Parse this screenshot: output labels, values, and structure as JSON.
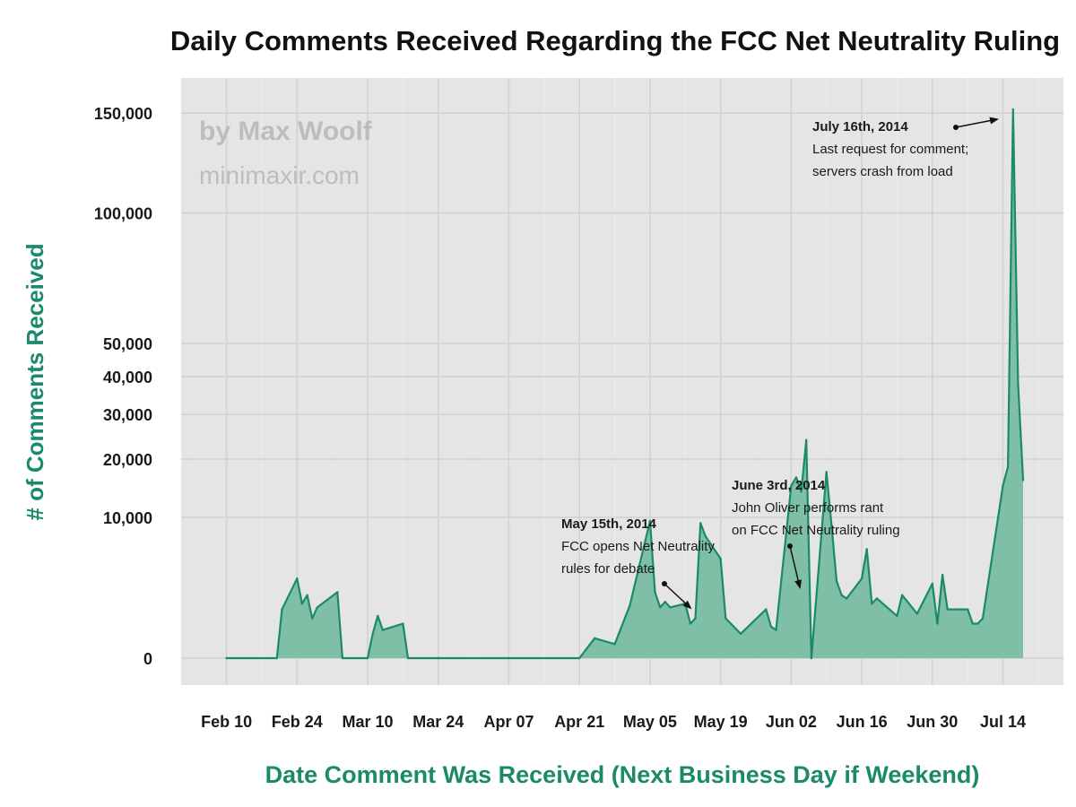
{
  "colors": {
    "accent": "#1b8a6b",
    "area_fill": "#7fbfa6",
    "panel_bg": "#e5e5e5",
    "grid": "#d2d2d2",
    "watermark": "#bdbdbd"
  },
  "watermark": {
    "line1": "by Max Woolf",
    "line2": "minimaxir.com"
  },
  "chart_data": {
    "type": "area",
    "title": "Daily Comments Received Regarding the FCC Net Neutrality Ruling",
    "xlabel": "Date Comment Was Received (Next Business Day if Weekend)",
    "ylabel": "# of Comments Received",
    "y_scale": "sqrt",
    "ylim": [
      0,
      155000
    ],
    "xlim": [
      "2014-02-01",
      "2014-07-26"
    ],
    "grid": true,
    "x_ticks": [
      {
        "date": "2014-02-10",
        "label": "Feb 10"
      },
      {
        "date": "2014-02-24",
        "label": "Feb 24"
      },
      {
        "date": "2014-03-10",
        "label": "Mar 10"
      },
      {
        "date": "2014-03-24",
        "label": "Mar 24"
      },
      {
        "date": "2014-04-07",
        "label": "Apr 07"
      },
      {
        "date": "2014-04-21",
        "label": "Apr 21"
      },
      {
        "date": "2014-05-05",
        "label": "May 05"
      },
      {
        "date": "2014-05-19",
        "label": "May 19"
      },
      {
        "date": "2014-06-02",
        "label": "Jun 02"
      },
      {
        "date": "2014-06-16",
        "label": "Jun 16"
      },
      {
        "date": "2014-06-30",
        "label": "Jun 30"
      },
      {
        "date": "2014-07-14",
        "label": "Jul 14"
      }
    ],
    "y_ticks": [
      {
        "value": 0,
        "label": "0"
      },
      {
        "value": 10000,
        "label": "10,000"
      },
      {
        "value": 20000,
        "label": "20,000"
      },
      {
        "value": 30000,
        "label": "30,000"
      },
      {
        "value": 40000,
        "label": "40,000"
      },
      {
        "value": 50000,
        "label": "50,000"
      },
      {
        "value": 100000,
        "label": "100,000"
      },
      {
        "value": 150000,
        "label": "150,000"
      }
    ],
    "x": [
      "2014-02-10",
      "2014-02-20",
      "2014-02-21",
      "2014-02-24",
      "2014-02-25",
      "2014-02-26",
      "2014-02-27",
      "2014-02-28",
      "2014-03-04",
      "2014-03-05",
      "2014-03-10",
      "2014-03-11",
      "2014-03-12",
      "2014-03-13",
      "2014-03-17",
      "2014-03-18",
      "2014-03-24",
      "2014-04-07",
      "2014-04-21",
      "2014-04-24",
      "2014-04-28",
      "2014-05-01",
      "2014-05-05",
      "2014-05-06",
      "2014-05-07",
      "2014-05-08",
      "2014-05-09",
      "2014-05-12",
      "2014-05-13",
      "2014-05-14",
      "2014-05-15",
      "2014-05-16",
      "2014-05-19",
      "2014-05-20",
      "2014-05-23",
      "2014-05-28",
      "2014-05-29",
      "2014-05-30",
      "2014-06-02",
      "2014-06-03",
      "2014-06-04",
      "2014-06-05",
      "2014-06-06",
      "2014-06-09",
      "2014-06-10",
      "2014-06-11",
      "2014-06-12",
      "2014-06-13",
      "2014-06-16",
      "2014-06-17",
      "2014-06-18",
      "2014-06-19",
      "2014-06-23",
      "2014-06-24",
      "2014-06-27",
      "2014-06-30",
      "2014-07-01",
      "2014-07-02",
      "2014-07-03",
      "2014-07-07",
      "2014-07-08",
      "2014-07-09",
      "2014-07-10",
      "2014-07-14",
      "2014-07-15",
      "2014-07-16",
      "2014-07-17",
      "2014-07-18"
    ],
    "values": [
      0,
      0,
      1200,
      3200,
      1500,
      2000,
      800,
      1300,
      2200,
      0,
      0,
      300,
      900,
      400,
      600,
      0,
      0,
      0,
      0,
      200,
      100,
      1400,
      9500,
      2200,
      1300,
      1600,
      1300,
      1500,
      600,
      800,
      9200,
      7500,
      5000,
      800,
      300,
      1200,
      500,
      400,
      15000,
      16500,
      14000,
      24000,
      0,
      17500,
      9000,
      3000,
      2000,
      1800,
      3200,
      6000,
      1500,
      1800,
      900,
      2000,
      1000,
      2800,
      600,
      3500,
      1200,
      1200,
      600,
      600,
      800,
      15000,
      18500,
      152000,
      38000,
      16000
    ]
  },
  "annotations": [
    {
      "heading": "May 15th, 2014",
      "lines": [
        "FCC opens Net Neutrality",
        "rules for debate"
      ]
    },
    {
      "heading": "June 3rd, 2014",
      "lines": [
        "John Oliver performs rant",
        "on FCC Net Neutrality ruling"
      ]
    },
    {
      "heading": "July 16th, 2014",
      "lines": [
        "Last request for comment;",
        "servers crash from load"
      ]
    }
  ]
}
